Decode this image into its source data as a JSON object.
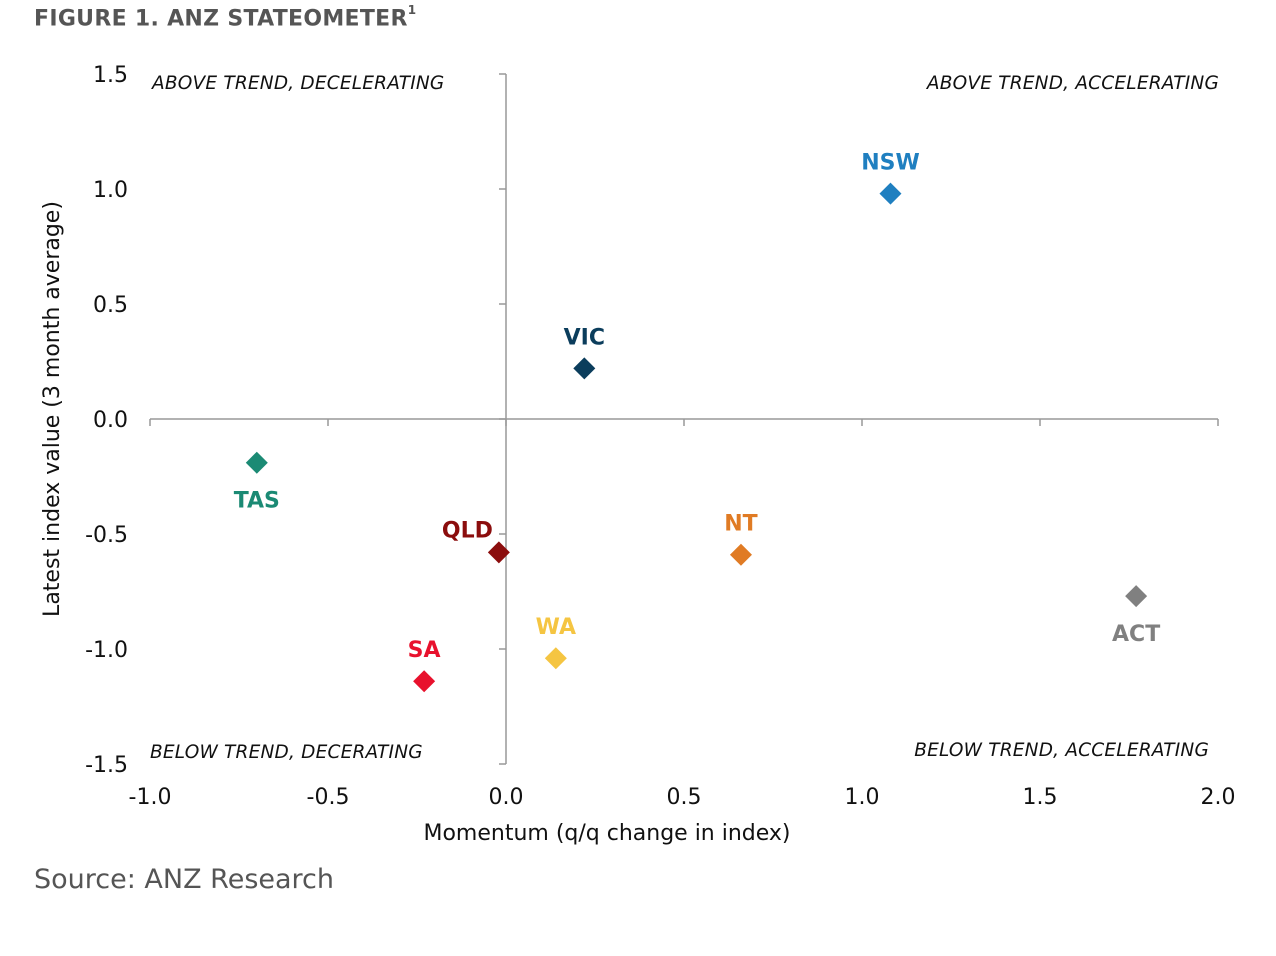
{
  "figure": {
    "title": "FIGURE 1. ANZ STATEOMETER",
    "title_superscript": "1",
    "source": "Source: ANZ Research"
  },
  "chart_data": {
    "type": "scatter",
    "marker": "diamond",
    "xlabel": "Momentum (q/q change in index)",
    "ylabel": "Latest index value (3 month average)",
    "xlim": [
      -1.0,
      2.0
    ],
    "ylim": [
      -1.5,
      1.5
    ],
    "x_ticks": [
      "-1.0",
      "-0.5",
      "0.0",
      "0.5",
      "1.0",
      "1.5",
      "2.0"
    ],
    "y_ticks": [
      "1.5",
      "1.0",
      "0.5",
      "0.0",
      "-0.5",
      "-1.0",
      "-1.5"
    ],
    "quadrant_labels": {
      "top_left": "ABOVE TREND, DECELERATING",
      "top_right": "ABOVE TREND, ACCELERATING",
      "bottom_left": "BELOW TREND, DECERATING",
      "bottom_right": "BELOW TREND, ACCELERATING"
    },
    "points": [
      {
        "label": "NSW",
        "x": 1.08,
        "y": 0.98,
        "color": "#1f7fc0",
        "label_pos": "above"
      },
      {
        "label": "VIC",
        "x": 0.22,
        "y": 0.22,
        "color": "#0b3d5c",
        "label_pos": "above"
      },
      {
        "label": "TAS",
        "x": -0.7,
        "y": -0.19,
        "color": "#1b8a74",
        "label_pos": "below"
      },
      {
        "label": "QLD",
        "x": -0.02,
        "y": -0.58,
        "color": "#8b0d0d",
        "label_pos": "above-left"
      },
      {
        "label": "NT",
        "x": 0.66,
        "y": -0.59,
        "color": "#e07b24",
        "label_pos": "above"
      },
      {
        "label": "ACT",
        "x": 1.77,
        "y": -0.77,
        "color": "#808080",
        "label_pos": "below"
      },
      {
        "label": "WA",
        "x": 0.14,
        "y": -1.04,
        "color": "#f5c542",
        "label_pos": "above"
      },
      {
        "label": "SA",
        "x": -0.23,
        "y": -1.14,
        "color": "#e8112d",
        "label_pos": "above"
      }
    ]
  }
}
